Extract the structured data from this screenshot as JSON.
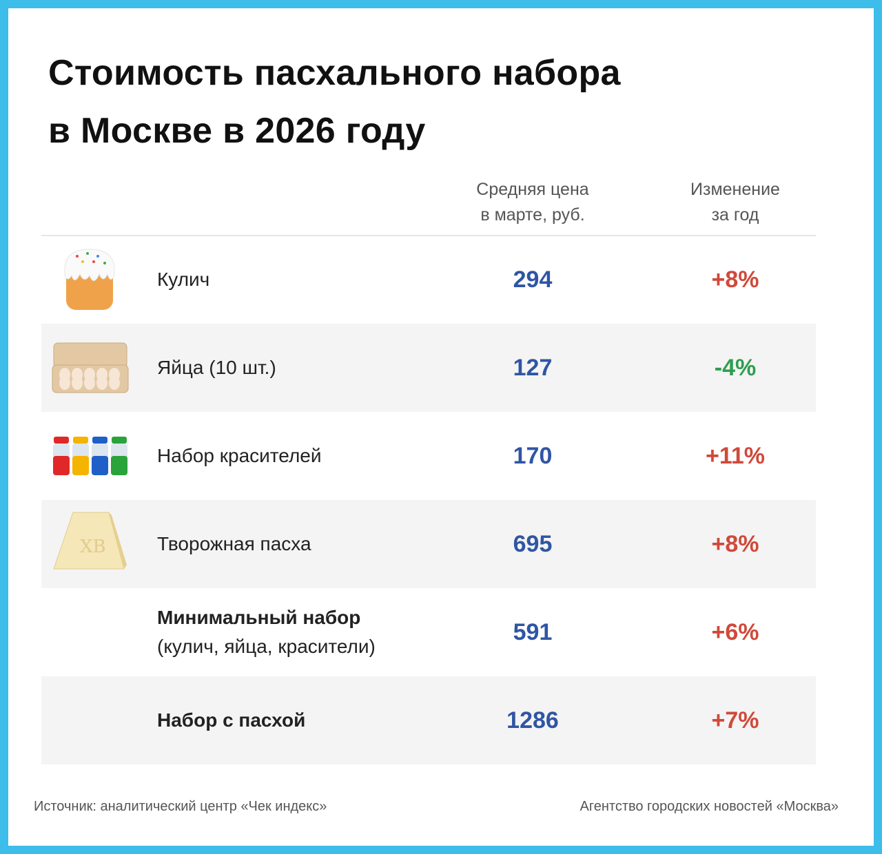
{
  "title_line1": "Стоимость пасхального набора",
  "title_line2": "в Москве в 2026 году",
  "colors": {
    "border": "#3dbde9",
    "price": "#2f55a4",
    "increase": "#d0493a",
    "decrease": "#2e9e4f"
  },
  "chart_data": {
    "type": "table",
    "columns": [
      {
        "line1": "Средняя цена",
        "line2": "в марте, руб."
      },
      {
        "line1": "Изменение",
        "line2": "за год"
      }
    ],
    "rows": [
      {
        "icon": "kulich-icon",
        "label": "Кулич",
        "sublabel": "",
        "price": "294",
        "change": "+8%",
        "trend": "up"
      },
      {
        "icon": "eggs-icon",
        "label": "Яйца (10 шт.)",
        "sublabel": "",
        "price": "127",
        "change": "-4%",
        "trend": "down"
      },
      {
        "icon": "dyes-icon",
        "label": "Набор красителей",
        "sublabel": "",
        "price": "170",
        "change": "+11%",
        "trend": "up"
      },
      {
        "icon": "paskha-icon",
        "label": "Творожная пасха",
        "sublabel": "",
        "price": "695",
        "change": "+8%",
        "trend": "up"
      },
      {
        "icon": "",
        "label": "Минимальный набор",
        "sublabel": "(кулич, яйца, красители)",
        "price": "591",
        "change": "+6%",
        "trend": "up"
      },
      {
        "icon": "",
        "label": "Набор с пасхой",
        "sublabel": "",
        "price": "1286",
        "change": "+7%",
        "trend": "up"
      }
    ]
  },
  "footer": {
    "source": "Источник: аналитический центр «Чек индекс»",
    "agency": "Агентство городских новостей «Москва»"
  }
}
